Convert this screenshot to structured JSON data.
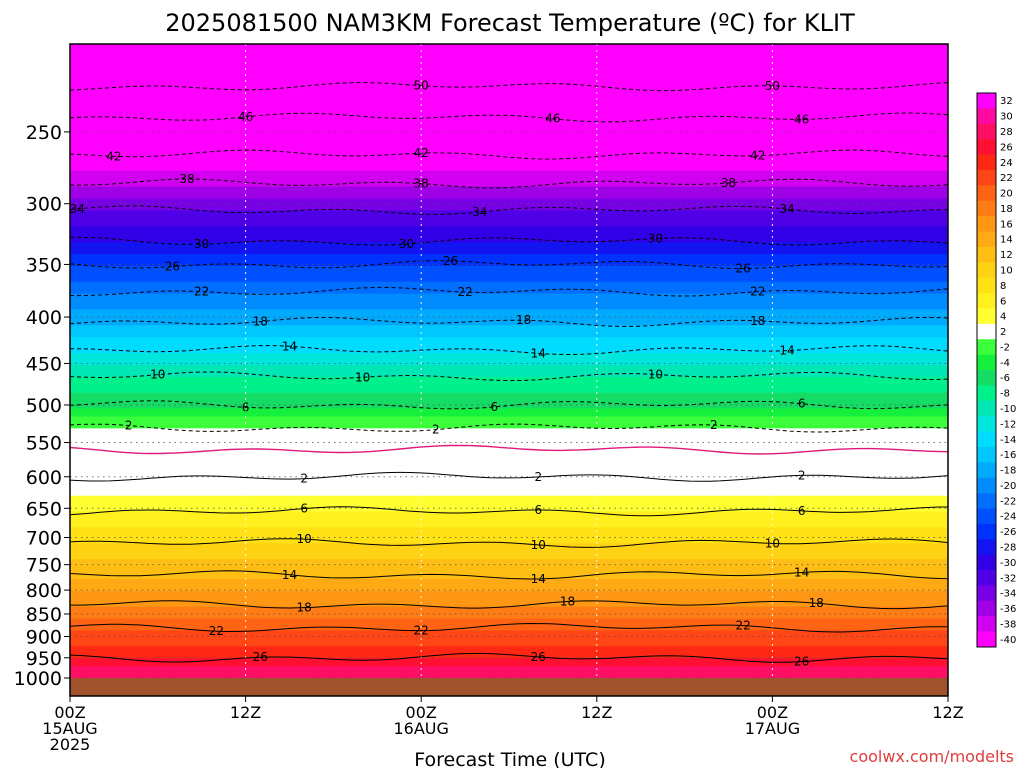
{
  "chart_data": {
    "type": "heatmap",
    "title": "2025081500 NAM3KM Forecast Temperature (ºC) for KLIT",
    "xlabel": "Forecast Time (UTC)",
    "credit": "coolwx.com/modelts",
    "x_ticks": [
      {
        "hour": 0,
        "lines": [
          "00Z",
          "15AUG",
          "2025"
        ]
      },
      {
        "hour": 12,
        "lines": [
          "12Z"
        ]
      },
      {
        "hour": 24,
        "lines": [
          "00Z",
          "16AUG"
        ]
      },
      {
        "hour": 36,
        "lines": [
          "12Z"
        ]
      },
      {
        "hour": 48,
        "lines": [
          "00Z",
          "17AUG"
        ]
      },
      {
        "hour": 60,
        "lines": [
          "12Z"
        ]
      }
    ],
    "xlim": [
      0,
      60
    ],
    "y_ticks": [
      250,
      300,
      350,
      400,
      450,
      500,
      550,
      600,
      650,
      700,
      750,
      800,
      850,
      900,
      950,
      1000
    ],
    "ylim_hpa": [
      200,
      1000
    ],
    "y_scale": "log-pressure",
    "grid": true,
    "colorbar": {
      "levels": [
        32,
        30,
        28,
        26,
        24,
        22,
        20,
        18,
        16,
        14,
        12,
        10,
        8,
        6,
        4,
        2,
        -2,
        -4,
        -6,
        -8,
        -10,
        -12,
        -14,
        -16,
        -18,
        -20,
        -22,
        -24,
        -26,
        -28,
        -30,
        -32,
        -34,
        -36,
        -38,
        -40
      ],
      "colors": [
        "#ff00ff",
        "#ff0aa0",
        "#ff0f64",
        "#ff0f32",
        "#ff2814",
        "#ff4614",
        "#ff6414",
        "#ff7d14",
        "#ff9614",
        "#ffaa14",
        "#ffbe14",
        "#ffd214",
        "#ffe114",
        "#fff01e",
        "#ffff32",
        "#ffffff",
        "#3cff3c",
        "#14f03c",
        "#14dc64",
        "#00f08c",
        "#00e6b4",
        "#00e6dc",
        "#00dcff",
        "#00c8ff",
        "#00aaff",
        "#008cff",
        "#006eff",
        "#0050ff",
        "#0032ff",
        "#1414f0",
        "#3200e6",
        "#5000e6",
        "#7800e6",
        "#a000e6",
        "#d200f0",
        "#ff00ff"
      ]
    },
    "profile": [
      {
        "p": 200,
        "t": -56
      },
      {
        "p": 215,
        "t": -52
      },
      {
        "p": 235,
        "t": -47
      },
      {
        "p": 260,
        "t": -43
      },
      {
        "p": 285,
        "t": -38
      },
      {
        "p": 305,
        "t": -34
      },
      {
        "p": 330,
        "t": -30
      },
      {
        "p": 350,
        "t": -26
      },
      {
        "p": 375,
        "t": -22
      },
      {
        "p": 405,
        "t": -18
      },
      {
        "p": 435,
        "t": -14
      },
      {
        "p": 465,
        "t": -10
      },
      {
        "p": 500,
        "t": -6
      },
      {
        "p": 530,
        "t": -2
      },
      {
        "p": 560,
        "t": 0
      },
      {
        "p": 600,
        "t": 2
      },
      {
        "p": 655,
        "t": 6
      },
      {
        "p": 710,
        "t": 10
      },
      {
        "p": 770,
        "t": 14
      },
      {
        "p": 830,
        "t": 18
      },
      {
        "p": 880,
        "t": 22
      },
      {
        "p": 950,
        "t": 26
      },
      {
        "p": 990,
        "t": 30
      },
      {
        "p": 1000,
        "t": 31
      }
    ],
    "contours": [
      {
        "value": -50,
        "p": 215,
        "labels": [
          {
            "h": 24,
            "text": "50"
          },
          {
            "h": 48,
            "text": "50"
          }
        ]
      },
      {
        "value": -46,
        "p": 237,
        "labels": [
          {
            "h": 12,
            "text": "46"
          },
          {
            "h": 33,
            "text": "46"
          },
          {
            "h": 50,
            "text": "46"
          }
        ]
      },
      {
        "value": -42,
        "p": 259,
        "labels": [
          {
            "h": 3,
            "text": "42"
          },
          {
            "h": 24,
            "text": "42"
          },
          {
            "h": 47,
            "text": "42"
          }
        ]
      },
      {
        "value": -38,
        "p": 282,
        "labels": [
          {
            "h": 8,
            "text": "38"
          },
          {
            "h": 24,
            "text": "38"
          },
          {
            "h": 45,
            "text": "38"
          }
        ]
      },
      {
        "value": -34,
        "p": 306,
        "labels": [
          {
            "h": 0.5,
            "text": "34"
          },
          {
            "h": 28,
            "text": "34"
          },
          {
            "h": 49,
            "text": "34"
          }
        ]
      },
      {
        "value": -30,
        "p": 329,
        "labels": [
          {
            "h": 9,
            "text": "30"
          },
          {
            "h": 23,
            "text": "30"
          },
          {
            "h": 40,
            "text": "30"
          }
        ]
      },
      {
        "value": -26,
        "p": 353,
        "labels": [
          {
            "h": 7,
            "text": "26"
          },
          {
            "h": 26,
            "text": "26"
          },
          {
            "h": 46,
            "text": "26"
          }
        ]
      },
      {
        "value": -22,
        "p": 376,
        "labels": [
          {
            "h": 9,
            "text": "22"
          },
          {
            "h": 27,
            "text": "22"
          },
          {
            "h": 47,
            "text": "22"
          }
        ]
      },
      {
        "value": -18,
        "p": 405,
        "labels": [
          {
            "h": 13,
            "text": "18"
          },
          {
            "h": 31,
            "text": "18"
          },
          {
            "h": 47,
            "text": "18"
          }
        ]
      },
      {
        "value": -14,
        "p": 437,
        "labels": [
          {
            "h": 15,
            "text": "14"
          },
          {
            "h": 32,
            "text": "14"
          },
          {
            "h": 49,
            "text": "14"
          }
        ]
      },
      {
        "value": -10,
        "p": 467,
        "labels": [
          {
            "h": 6,
            "text": "10"
          },
          {
            "h": 20,
            "text": "10"
          },
          {
            "h": 40,
            "text": "10"
          }
        ]
      },
      {
        "value": -6,
        "p": 502,
        "labels": [
          {
            "h": 12,
            "text": "6"
          },
          {
            "h": 29,
            "text": "6"
          },
          {
            "h": 50,
            "text": "6"
          }
        ]
      },
      {
        "value": -2,
        "p": 533,
        "labels": [
          {
            "h": 4,
            "text": "2"
          },
          {
            "h": 25,
            "text": "2"
          },
          {
            "h": 44,
            "text": "2"
          }
        ]
      },
      {
        "value": 0,
        "p": 550,
        "labels": []
      },
      {
        "value": 2,
        "p": 590,
        "labels": [
          {
            "h": 16,
            "text": "2"
          },
          {
            "h": 32,
            "text": "2"
          },
          {
            "h": 50,
            "text": "2"
          }
        ]
      },
      {
        "value": 6,
        "p": 655,
        "labels": [
          {
            "h": 16,
            "text": "6"
          },
          {
            "h": 32,
            "text": "6"
          },
          {
            "h": 50,
            "text": "6"
          }
        ]
      },
      {
        "value": 10,
        "p": 707,
        "labels": [
          {
            "h": 16,
            "text": "10"
          },
          {
            "h": 32,
            "text": "10"
          },
          {
            "h": 48,
            "text": "10"
          }
        ]
      },
      {
        "value": 14,
        "p": 765,
        "labels": [
          {
            "h": 15,
            "text": "14"
          },
          {
            "h": 32,
            "text": "14"
          },
          {
            "h": 50,
            "text": "14"
          }
        ]
      },
      {
        "value": 18,
        "p": 825,
        "labels": [
          {
            "h": 16,
            "text": "18"
          },
          {
            "h": 34,
            "text": "18"
          },
          {
            "h": 51,
            "text": "18"
          }
        ]
      },
      {
        "value": 22,
        "p": 885,
        "labels": [
          {
            "h": 10,
            "text": "22"
          },
          {
            "h": 24,
            "text": "22"
          },
          {
            "h": 46,
            "text": "22"
          }
        ]
      },
      {
        "value": 26,
        "p": 945,
        "labels": [
          {
            "h": 13,
            "text": "26"
          },
          {
            "h": 32,
            "text": "26"
          },
          {
            "h": 50,
            "text": "26"
          }
        ]
      }
    ]
  }
}
